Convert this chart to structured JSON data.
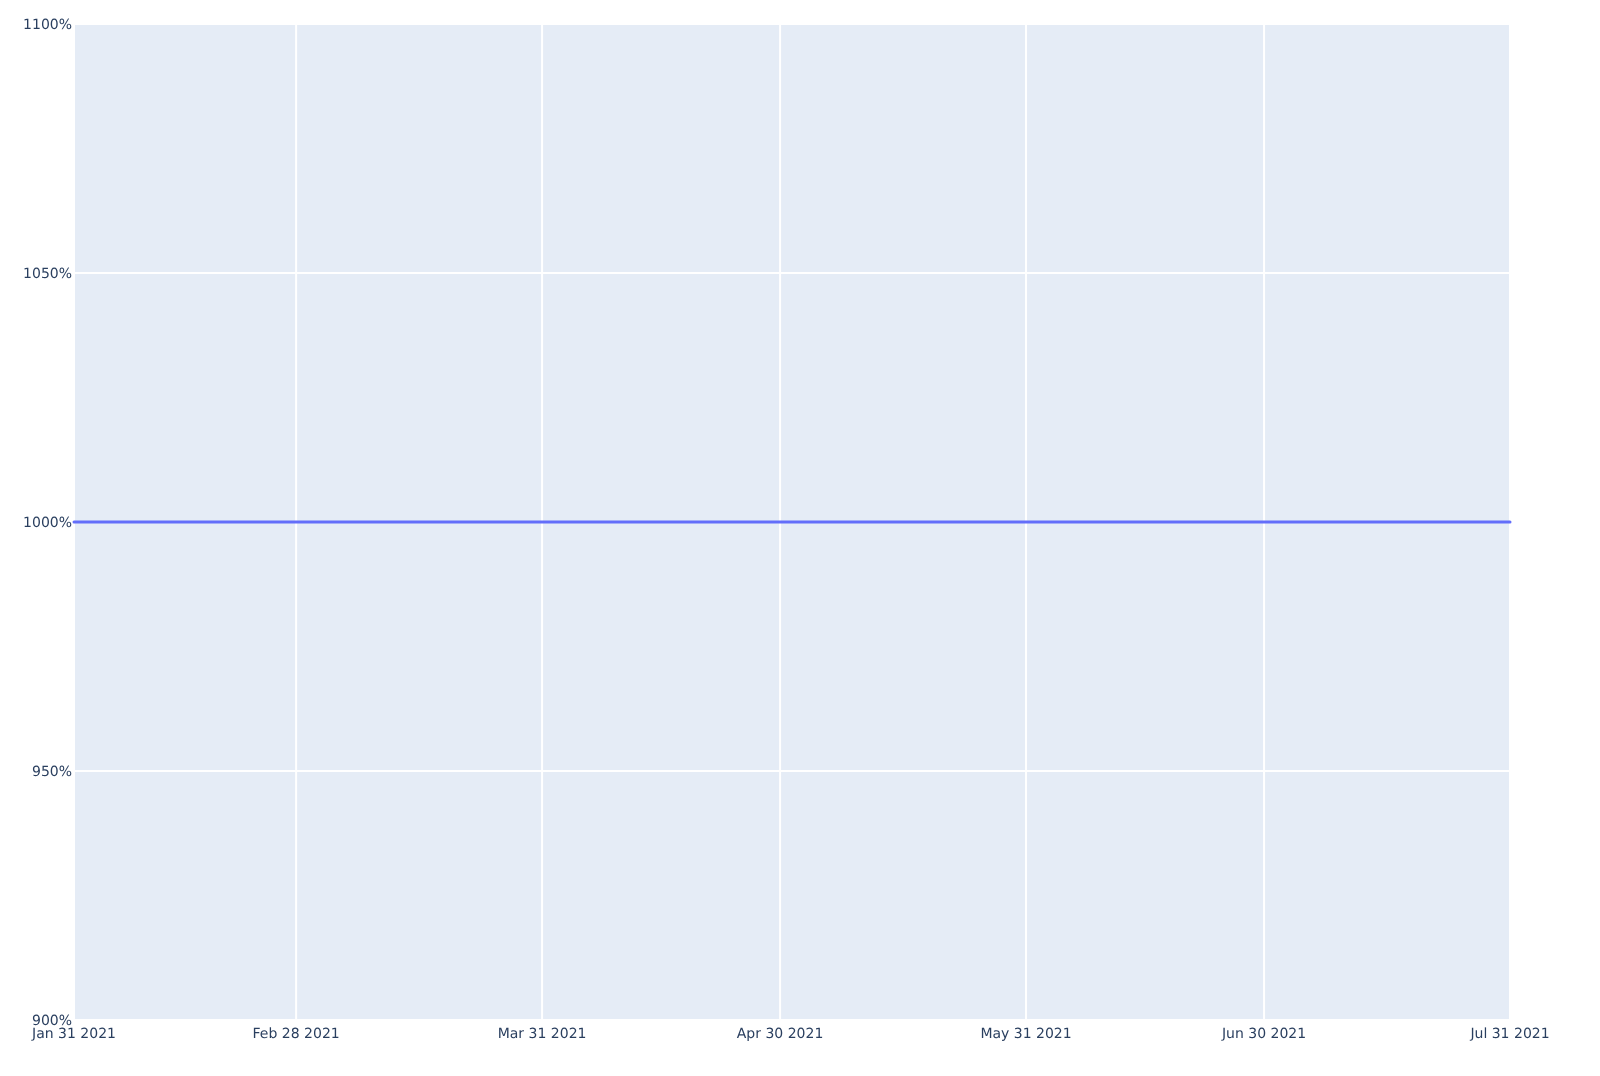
{
  "chart_data": {
    "type": "line",
    "x": [
      "2021-01-31",
      "2021-02-28",
      "2021-03-31",
      "2021-04-30",
      "2021-05-31",
      "2021-06-30",
      "2021-07-31"
    ],
    "series": [
      {
        "color": "#636efa",
        "values": [
          1000,
          1000,
          1000,
          1000,
          1000,
          1000,
          1000
        ]
      }
    ],
    "xlim": [
      "2021-01-31",
      "2021-07-31"
    ],
    "xticks": [
      {
        "value": "2021-01-31",
        "label": "Jan 31 2021"
      },
      {
        "value": "2021-02-28",
        "label": "Feb 28 2021"
      },
      {
        "value": "2021-03-31",
        "label": "Mar 31 2021"
      },
      {
        "value": "2021-04-30",
        "label": "Apr 30 2021"
      },
      {
        "value": "2021-05-31",
        "label": "May 31 2021"
      },
      {
        "value": "2021-06-30",
        "label": "Jun 30 2021"
      },
      {
        "value": "2021-07-31",
        "label": "Jul 31 2021"
      }
    ],
    "ylim": [
      900,
      1100
    ],
    "yticks": [
      {
        "value": 900,
        "label": "900%"
      },
      {
        "value": 950,
        "label": "950%"
      },
      {
        "value": 1000,
        "label": "1000%"
      },
      {
        "value": 1050,
        "label": "1050%"
      },
      {
        "value": 1100,
        "label": "1100%"
      }
    ],
    "grid": true,
    "line_style": "solid",
    "marker": "none"
  }
}
